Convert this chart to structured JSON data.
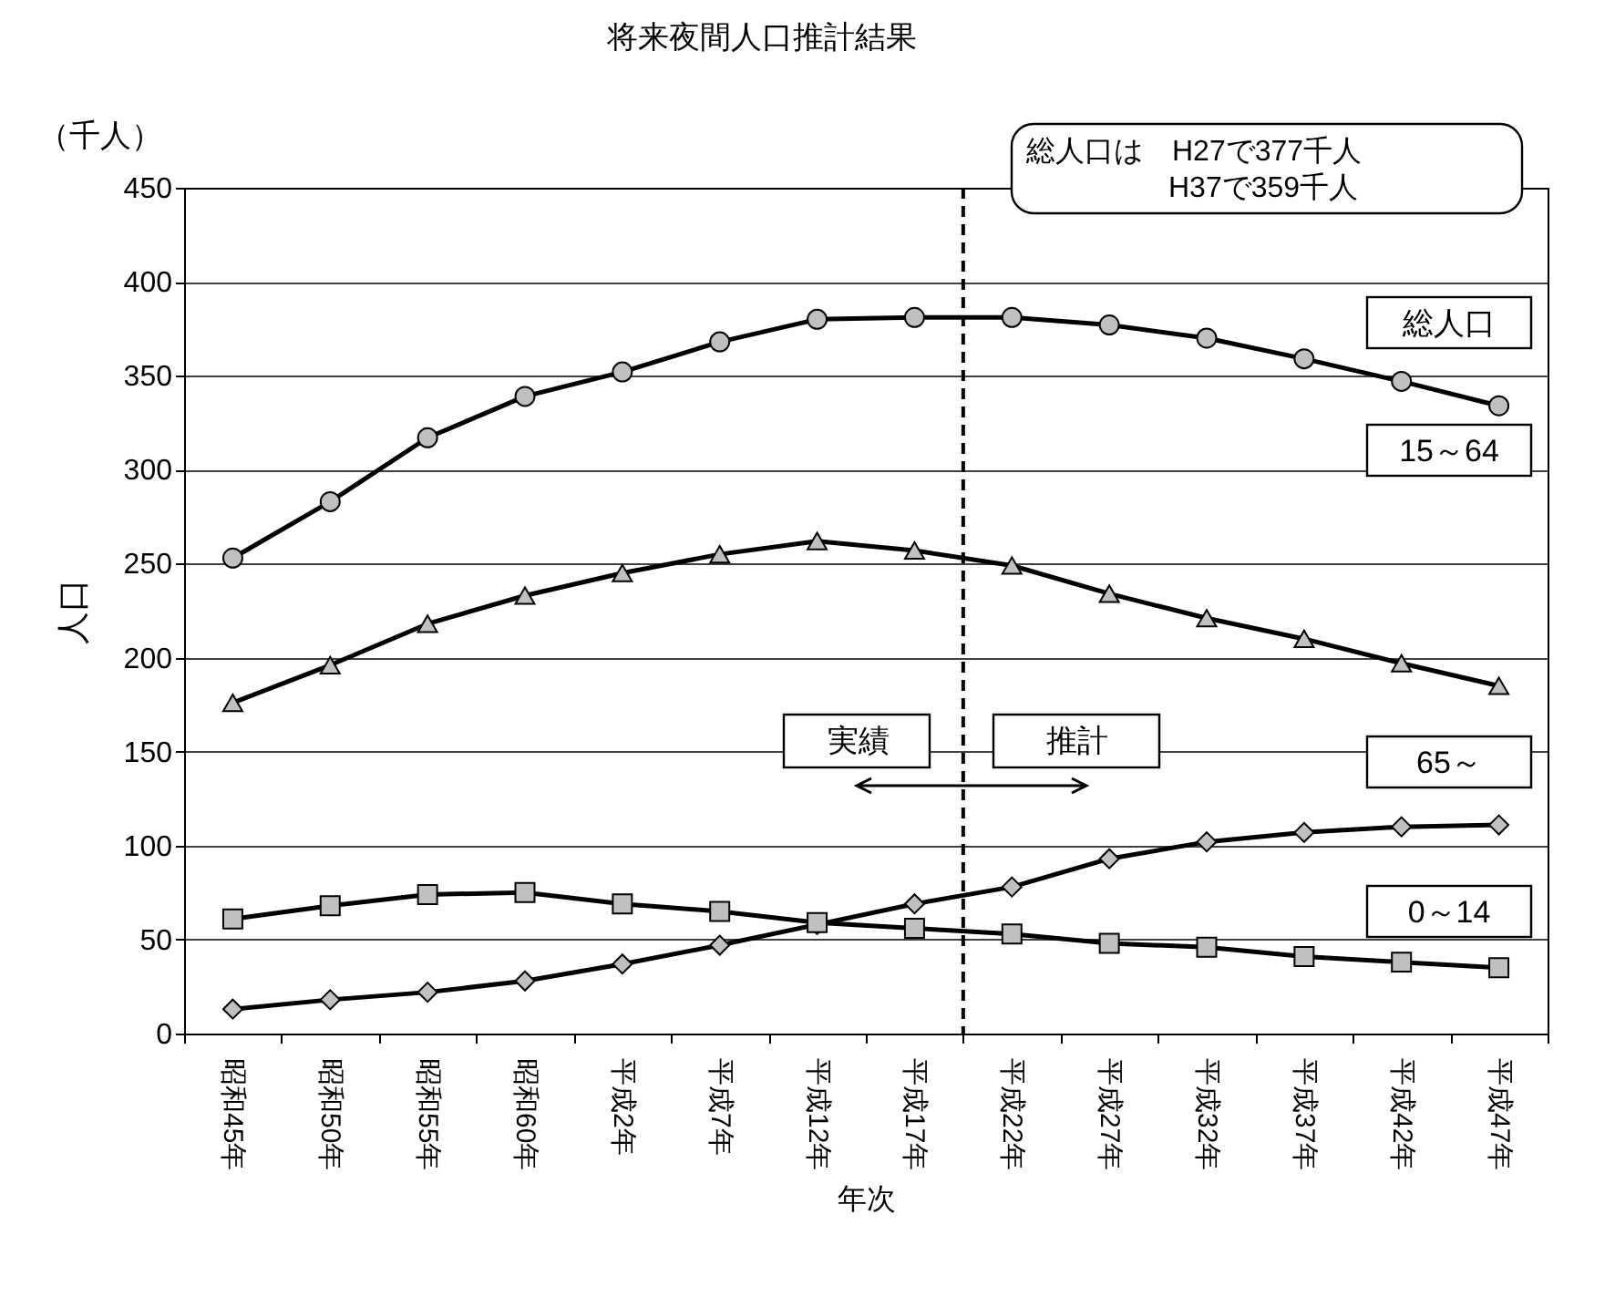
{
  "chart_data": {
    "type": "line",
    "title": "将来夜間人口推計結果",
    "xlabel": "年次",
    "ylabel": "人口",
    "categories": [
      "昭和45年",
      "昭和50年",
      "昭和55年",
      "昭和60年",
      "平成2年",
      "平成7年",
      "平成12年",
      "平成17年",
      "平成22年",
      "平成27年",
      "平成32年",
      "平成37年",
      "平成42年",
      "平成47年"
    ],
    "series": [
      {
        "name": "総人口",
        "color": "#000000",
        "marker": "circle",
        "values": [
          253,
          283,
          317,
          339,
          352,
          368,
          380,
          381,
          381,
          377,
          370,
          359,
          347,
          334
        ]
      },
      {
        "name": "15～64",
        "color": "#000000",
        "marker": "triangle",
        "values": [
          176,
          196,
          218,
          233,
          245,
          255,
          262,
          257,
          249,
          234,
          221,
          210,
          197,
          185
        ]
      },
      {
        "name": "65～",
        "color": "#000000",
        "marker": "diamond",
        "values": [
          13,
          18,
          22,
          28,
          37,
          47,
          58,
          69,
          78,
          93,
          102,
          107,
          110,
          111
        ]
      },
      {
        "name": "0～14",
        "color": "#000000",
        "marker": "square",
        "values": [
          61,
          68,
          74,
          75,
          69,
          65,
          59,
          56,
          53,
          48,
          46,
          41,
          38,
          35
        ]
      }
    ],
    "ylim": [
      0,
      450
    ],
    "yticks": [
      0,
      50,
      100,
      150,
      200,
      250,
      300,
      350,
      400,
      450
    ],
    "grid": "y",
    "legend": false,
    "ref_lines": [
      {
        "axis": "x",
        "value": "平成22年",
        "line_style": "dashed"
      }
    ],
    "annotations": [
      "（千人）",
      "総人口は　H27で377千人\nH37で359千人",
      "実績",
      "推計"
    ]
  }
}
